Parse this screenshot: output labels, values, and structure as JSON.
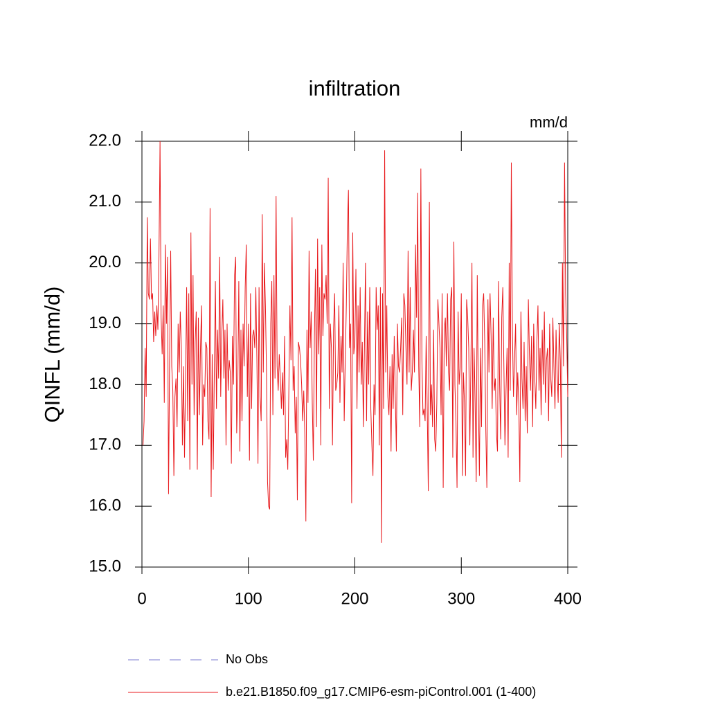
{
  "chart_data": {
    "type": "line",
    "title": "infiltration",
    "units_label": "mm/d",
    "y_label": "QINFL  (mm/d)",
    "xlim": [
      0,
      400
    ],
    "xticks": [
      0,
      100,
      200,
      300,
      400
    ],
    "ylim": [
      15,
      22
    ],
    "yticks": [
      {
        "value": 15,
        "label": "15.0"
      },
      {
        "value": 16,
        "label": "16.0"
      },
      {
        "value": 17,
        "label": "17.0"
      },
      {
        "value": 18,
        "label": "18.0"
      },
      {
        "value": 19,
        "label": "19.0"
      },
      {
        "value": 20,
        "label": "20.0"
      },
      {
        "value": 21,
        "label": "21.0"
      },
      {
        "value": 22,
        "label": "22.0"
      }
    ],
    "reference": {
      "name": "No Obs",
      "color": "#7b7bd1",
      "style": "dashed"
    },
    "x": [
      1,
      2,
      3,
      4,
      5,
      6,
      7,
      8,
      9,
      10,
      11,
      12,
      13,
      14,
      15,
      16,
      17,
      18,
      19,
      20,
      21,
      22,
      23,
      24,
      25,
      26,
      27,
      28,
      29,
      30,
      31,
      32,
      33,
      34,
      35,
      36,
      37,
      38,
      39,
      40,
      41,
      42,
      43,
      44,
      45,
      46,
      47,
      48,
      49,
      50,
      51,
      52,
      53,
      54,
      55,
      56,
      57,
      58,
      59,
      60,
      61,
      62,
      63,
      64,
      65,
      66,
      67,
      68,
      69,
      70,
      71,
      72,
      73,
      74,
      75,
      76,
      77,
      78,
      79,
      80,
      81,
      82,
      83,
      84,
      85,
      86,
      87,
      88,
      89,
      90,
      91,
      92,
      93,
      94,
      95,
      96,
      97,
      98,
      99,
      100,
      101,
      102,
      103,
      104,
      105,
      106,
      107,
      108,
      109,
      110,
      111,
      112,
      113,
      114,
      115,
      116,
      117,
      118,
      119,
      120,
      121,
      122,
      123,
      124,
      125,
      126,
      127,
      128,
      129,
      130,
      131,
      132,
      133,
      134,
      135,
      136,
      137,
      138,
      139,
      140,
      141,
      142,
      143,
      144,
      145,
      146,
      147,
      148,
      149,
      150,
      151,
      152,
      153,
      154,
      155,
      156,
      157,
      158,
      159,
      160,
      161,
      162,
      163,
      164,
      165,
      166,
      167,
      168,
      169,
      170,
      171,
      172,
      173,
      174,
      175,
      176,
      177,
      178,
      179,
      180,
      181,
      182,
      183,
      184,
      185,
      186,
      187,
      188,
      189,
      190,
      191,
      192,
      193,
      194,
      195,
      196,
      197,
      198,
      199,
      200,
      201,
      202,
      203,
      204,
      205,
      206,
      207,
      208,
      209,
      210,
      211,
      212,
      213,
      214,
      215,
      216,
      217,
      218,
      219,
      220,
      221,
      222,
      223,
      224,
      225,
      226,
      227,
      228,
      229,
      230,
      231,
      232,
      233,
      234,
      235,
      236,
      237,
      238,
      239,
      240,
      241,
      242,
      243,
      244,
      245,
      246,
      247,
      248,
      249,
      250,
      251,
      252,
      253,
      254,
      255,
      256,
      257,
      258,
      259,
      260,
      261,
      262,
      263,
      264,
      265,
      266,
      267,
      268,
      269,
      270,
      271,
      272,
      273,
      274,
      275,
      276,
      277,
      278,
      279,
      280,
      281,
      282,
      283,
      284,
      285,
      286,
      287,
      288,
      289,
      290,
      291,
      292,
      293,
      294,
      295,
      296,
      297,
      298,
      299,
      300,
      301,
      302,
      303,
      304,
      305,
      306,
      307,
      308,
      309,
      310,
      311,
      312,
      313,
      314,
      315,
      316,
      317,
      318,
      319,
      320,
      321,
      322,
      323,
      324,
      325,
      326,
      327,
      328,
      329,
      330,
      331,
      332,
      333,
      334,
      335,
      336,
      337,
      338,
      339,
      340,
      341,
      342,
      343,
      344,
      345,
      346,
      347,
      348,
      349,
      350,
      351,
      352,
      353,
      354,
      355,
      356,
      357,
      358,
      359,
      360,
      361,
      362,
      363,
      364,
      365,
      366,
      367,
      368,
      369,
      370,
      371,
      372,
      373,
      374,
      375,
      376,
      377,
      378,
      379,
      380,
      381,
      382,
      383,
      384,
      385,
      386,
      387,
      388,
      389,
      390,
      391,
      392,
      393,
      394,
      395,
      396,
      397,
      398,
      399,
      400
    ],
    "series": [
      {
        "name": "b.e21.B1850.f09_g17.CMIP6-esm-piControl.001 (1-400)",
        "color": "#e8191c",
        "values": [
          17.0,
          17.4,
          18.6,
          17.8,
          20.75,
          19.5,
          19.4,
          20.4,
          19.4,
          19.5,
          18.7,
          19.2,
          18.8,
          19.3,
          18.9,
          20.1,
          22.0,
          19.1,
          18.5,
          19.3,
          17.7,
          20.3,
          19.0,
          20.1,
          16.2,
          18.4,
          20.2,
          18.3,
          17.9,
          16.5,
          17.8,
          18.1,
          17.3,
          19.0,
          18.2,
          19.2,
          18.6,
          17.0,
          18.3,
          16.8,
          18.1,
          19.6,
          17.4,
          19.5,
          16.6,
          20.5,
          18.0,
          19.8,
          17.5,
          18.7,
          19.2,
          16.6,
          19.1,
          17.5,
          18.6,
          19.3,
          17.0,
          18.0,
          17.8,
          18.7,
          18.6,
          17.4,
          17.1,
          20.9,
          16.15,
          18.5,
          16.6,
          18.2,
          19.7,
          17.6,
          18.9,
          18.1,
          20.1,
          17.8,
          18.8,
          19.4,
          18.1,
          18.9,
          17.0,
          19.0,
          17.9,
          18.4,
          18.2,
          16.7,
          18.8,
          18.0,
          19.8,
          20.1,
          17.2,
          17.9,
          19.7,
          16.9,
          18.9,
          17.4,
          19.0,
          18.3,
          19.6,
          20.3,
          17.8,
          19.0,
          16.75,
          19.5,
          17.6,
          18.8,
          18.9,
          18.6,
          19.6,
          18.4,
          16.7,
          19.6,
          17.8,
          17.4,
          20.8,
          18.2,
          20.0,
          19.3,
          18.2,
          16.4,
          16.0,
          15.95,
          19.0,
          19.7,
          17.5,
          19.8,
          18.1,
          21.1,
          18.3,
          17.9,
          18.5,
          18.1,
          17.6,
          18.2,
          17.5,
          18.8,
          16.8,
          17.1,
          16.6,
          17.9,
          19.3,
          18.4,
          20.75,
          17.9,
          18.3,
          17.2,
          17.8,
          16.1,
          18.7,
          18.6,
          18.4,
          18.0,
          17.4,
          17.9,
          17.2,
          15.75,
          18.9,
          17.7,
          20.2,
          18.6,
          19.2,
          17.7,
          16.75,
          18.8,
          19.9,
          17.3,
          20.4,
          18.5,
          19.6,
          17.0,
          20.3,
          18.8,
          19.5,
          19.4,
          19.8,
          19.0,
          21.4,
          17.6,
          19.0,
          18.6,
          17.0,
          18.9,
          19.5,
          17.9,
          18.0,
          18.2,
          19.3,
          17.7,
          18.8,
          18.2,
          20.0,
          17.4,
          18.4,
          19.3,
          20.6,
          21.2,
          18.6,
          19.0,
          16.05,
          20.5,
          18.5,
          18.7,
          19.9,
          17.6,
          19.3,
          18.2,
          19.6,
          18.0,
          18.7,
          17.3,
          18.6,
          20.0,
          17.4,
          19.2,
          18.0,
          19.6,
          17.6,
          17.0,
          16.5,
          18.0,
          17.5,
          19.6,
          18.9,
          19.3,
          17.0,
          19.6,
          15.4,
          19.5,
          17.6,
          21.85,
          18.2,
          19.3,
          17.8,
          17.5,
          18.3,
          16.9,
          18.5,
          17.6,
          18.8,
          17.8,
          16.9,
          19.0,
          18.3,
          18.2,
          18.6,
          19.1,
          17.5,
          19.5,
          19.3,
          18.6,
          18.0,
          20.2,
          18.2,
          19.6,
          17.9,
          18.2,
          18.9,
          18.2,
          20.3,
          19.1,
          21.15,
          18.3,
          17.3,
          21.55,
          18.4,
          17.5,
          17.6,
          17.4,
          18.8,
          17.6,
          16.25,
          21.0,
          17.5,
          18.0,
          17.3,
          18.9,
          17.1,
          16.9,
          17.7,
          19.4,
          19.0,
          18.6,
          17.5,
          19.5,
          16.3,
          18.9,
          19.1,
          18.3,
          19.5,
          18.2,
          17.9,
          19.4,
          19.6,
          16.8,
          20.35,
          18.0,
          17.4,
          16.3,
          19.2,
          18.0,
          18.3,
          19.5,
          16.5,
          18.2,
          17.7,
          16.5,
          19.4,
          19.1,
          18.6,
          17.0,
          18.3,
          20.0,
          16.8,
          18.6,
          17.7,
          16.4,
          19.8,
          17.8,
          16.5,
          18.6,
          17.3,
          19.3,
          19.5,
          18.7,
          17.3,
          16.3,
          19.4,
          18.2,
          19.5,
          18.8,
          17.6,
          19.1,
          17.9,
          18.1,
          17.2,
          16.9,
          19.7,
          18.0,
          17.1,
          19.1,
          19.6,
          18.3,
          17.0,
          17.9,
          18.6,
          16.8,
          20.0,
          17.9,
          21.65,
          18.9,
          17.8,
          18.4,
          19.0,
          17.5,
          18.2,
          17.7,
          16.4,
          19.2,
          18.1,
          17.6,
          18.7,
          17.4,
          18.3,
          17.2,
          19.4,
          18.5,
          17.9,
          18.8,
          17.3,
          19.0,
          18.1,
          17.6,
          18.7,
          19.3,
          17.9,
          18.6,
          17.5,
          18.9,
          18.0,
          19.2,
          17.7,
          18.4,
          18.6,
          17.4,
          19.0,
          18.1,
          17.8,
          19.1,
          18.3,
          17.6,
          18.9,
          18.2,
          17.7,
          19.0,
          18.4,
          16.8,
          20.0,
          18.3,
          21.65,
          19.5,
          18.8,
          17.8
        ]
      }
    ]
  }
}
